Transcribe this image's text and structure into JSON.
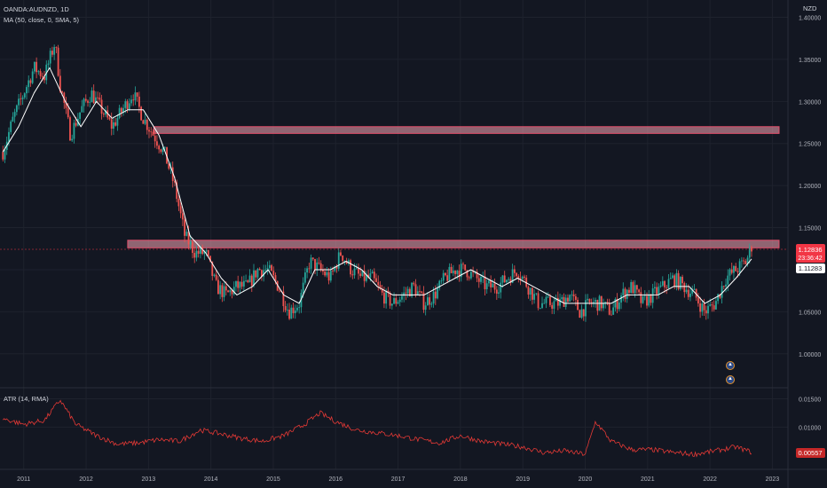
{
  "header": {
    "symbol": "OANDA:AUDNZD, 1D",
    "indicator_ma": "MA (50, close, 0, SMA, 5)",
    "indicator_atr": "ATR (14, RMA)",
    "currency": "NZD"
  },
  "price_labels": {
    "last": "1.12836",
    "countdown": "23:36:42",
    "ma": "1.11283",
    "atr": "0.00557"
  },
  "colors": {
    "background": "#131722",
    "up_candle": "#26a69a",
    "down_candle": "#ef5350",
    "ma_line": "#ffffff",
    "atr_line": "#e53935",
    "zone_fill": "#f8a5b5",
    "zone_border": "#e24f6b",
    "grid": "#1e222d",
    "last_price": "#f23645"
  },
  "events": {
    "icon": "earnings-flag-icon",
    "count": 2
  },
  "chart_data": [
    {
      "type": "candlestick",
      "title": "OANDA:AUDNZD, 1D",
      "xlabel": "",
      "ylabel": "NZD",
      "x_ticks": [
        "2011",
        "2012",
        "2013",
        "2014",
        "2015",
        "2016",
        "2017",
        "2018",
        "2019",
        "2020",
        "2021",
        "2022",
        "2023"
      ],
      "y_ticks": [
        1.0,
        1.05,
        1.1,
        1.15,
        1.2,
        1.25,
        1.3,
        1.35,
        1.4
      ],
      "ylim": [
        0.965,
        1.41
      ],
      "series": [
        {
          "name": "AUDNZD close",
          "x": [
            "2010-09",
            "2010-11",
            "2011-01",
            "2011-03",
            "2011-05",
            "2011-07",
            "2011-08",
            "2011-10",
            "2011-12",
            "2012-02",
            "2012-04",
            "2012-06",
            "2012-08",
            "2012-10",
            "2012-12",
            "2013-02",
            "2013-04",
            "2013-06",
            "2013-08",
            "2013-10",
            "2013-12",
            "2014-02",
            "2014-04",
            "2014-06",
            "2014-08",
            "2014-10",
            "2014-12",
            "2015-02",
            "2015-04",
            "2015-06",
            "2015-08",
            "2015-10",
            "2015-12",
            "2016-02",
            "2016-04",
            "2016-06",
            "2016-08",
            "2016-10",
            "2016-12",
            "2017-02",
            "2017-04",
            "2017-06",
            "2017-08",
            "2017-10",
            "2017-12",
            "2018-02",
            "2018-04",
            "2018-06",
            "2018-08",
            "2018-10",
            "2018-12",
            "2019-02",
            "2019-04",
            "2019-06",
            "2019-08",
            "2019-10",
            "2019-12",
            "2020-02",
            "2020-04",
            "2020-06",
            "2020-08",
            "2020-10",
            "2020-12",
            "2021-02",
            "2021-04",
            "2021-06",
            "2021-08",
            "2021-10",
            "2021-12",
            "2022-02",
            "2022-04",
            "2022-06",
            "2022-08",
            "2022-09"
          ],
          "values": [
            1.24,
            1.28,
            1.31,
            1.34,
            1.33,
            1.37,
            1.32,
            1.26,
            1.29,
            1.31,
            1.29,
            1.27,
            1.29,
            1.31,
            1.28,
            1.26,
            1.24,
            1.2,
            1.14,
            1.12,
            1.12,
            1.08,
            1.07,
            1.08,
            1.08,
            1.1,
            1.1,
            1.08,
            1.05,
            1.06,
            1.11,
            1.1,
            1.09,
            1.12,
            1.1,
            1.09,
            1.09,
            1.07,
            1.06,
            1.07,
            1.08,
            1.06,
            1.07,
            1.09,
            1.1,
            1.1,
            1.09,
            1.08,
            1.08,
            1.09,
            1.1,
            1.08,
            1.06,
            1.06,
            1.06,
            1.07,
            1.05,
            1.06,
            1.06,
            1.05,
            1.07,
            1.08,
            1.06,
            1.07,
            1.08,
            1.09,
            1.08,
            1.07,
            1.05,
            1.06,
            1.09,
            1.1,
            1.11,
            1.12836
          ]
        },
        {
          "name": "MA (50, close, 0, SMA, 5)",
          "x": [
            "2010-09",
            "2010-12",
            "2011-03",
            "2011-06",
            "2011-09",
            "2011-12",
            "2012-03",
            "2012-06",
            "2012-09",
            "2012-12",
            "2013-03",
            "2013-06",
            "2013-09",
            "2013-12",
            "2014-03",
            "2014-06",
            "2014-09",
            "2014-12",
            "2015-03",
            "2015-06",
            "2015-09",
            "2015-12",
            "2016-03",
            "2016-06",
            "2016-09",
            "2016-12",
            "2017-03",
            "2017-06",
            "2017-09",
            "2017-12",
            "2018-03",
            "2018-06",
            "2018-09",
            "2018-12",
            "2019-03",
            "2019-06",
            "2019-09",
            "2019-12",
            "2020-03",
            "2020-06",
            "2020-09",
            "2020-12",
            "2021-03",
            "2021-06",
            "2021-09",
            "2021-12",
            "2022-03",
            "2022-06",
            "2022-09"
          ],
          "values": [
            1.24,
            1.27,
            1.31,
            1.34,
            1.3,
            1.27,
            1.3,
            1.28,
            1.29,
            1.29,
            1.26,
            1.21,
            1.14,
            1.12,
            1.09,
            1.07,
            1.08,
            1.1,
            1.07,
            1.06,
            1.1,
            1.1,
            1.11,
            1.1,
            1.08,
            1.07,
            1.07,
            1.07,
            1.08,
            1.09,
            1.1,
            1.09,
            1.08,
            1.09,
            1.08,
            1.07,
            1.06,
            1.06,
            1.06,
            1.06,
            1.07,
            1.07,
            1.07,
            1.08,
            1.08,
            1.06,
            1.07,
            1.09,
            1.11283
          ]
        }
      ],
      "zones": [
        {
          "from_x": "2013-02",
          "to_x": "2023-03",
          "low": 1.262,
          "high": 1.27
        },
        {
          "from_x": "2012-09",
          "to_x": "2023-03",
          "low": 1.126,
          "high": 1.135
        }
      ]
    },
    {
      "type": "line",
      "title": "ATR (14, RMA)",
      "y_ticks": [
        0.01,
        0.015
      ],
      "ylim": [
        0.003,
        0.0165
      ],
      "series": [
        {
          "name": "ATR (14, RMA)",
          "x": [
            "2010-09",
            "2011-01",
            "2011-05",
            "2011-08",
            "2011-11",
            "2012-03",
            "2012-07",
            "2012-11",
            "2013-03",
            "2013-07",
            "2013-11",
            "2014-03",
            "2014-07",
            "2014-11",
            "2015-03",
            "2015-07",
            "2015-10",
            "2016-01",
            "2016-05",
            "2016-09",
            "2017-01",
            "2017-05",
            "2017-09",
            "2018-01",
            "2018-05",
            "2018-09",
            "2019-01",
            "2019-05",
            "2019-09",
            "2020-01",
            "2020-03",
            "2020-06",
            "2020-10",
            "2021-02",
            "2021-06",
            "2021-10",
            "2022-02",
            "2022-06",
            "2022-09"
          ],
          "values": [
            0.0115,
            0.0105,
            0.0112,
            0.0148,
            0.0105,
            0.0085,
            0.007,
            0.0072,
            0.0078,
            0.0075,
            0.0095,
            0.0088,
            0.008,
            0.0075,
            0.0085,
            0.0105,
            0.0125,
            0.011,
            0.0095,
            0.009,
            0.0085,
            0.0078,
            0.0072,
            0.0085,
            0.0075,
            0.007,
            0.0065,
            0.0055,
            0.0058,
            0.0052,
            0.011,
            0.0075,
            0.006,
            0.006,
            0.0055,
            0.0052,
            0.0058,
            0.0065,
            0.00557
          ]
        }
      ]
    }
  ]
}
